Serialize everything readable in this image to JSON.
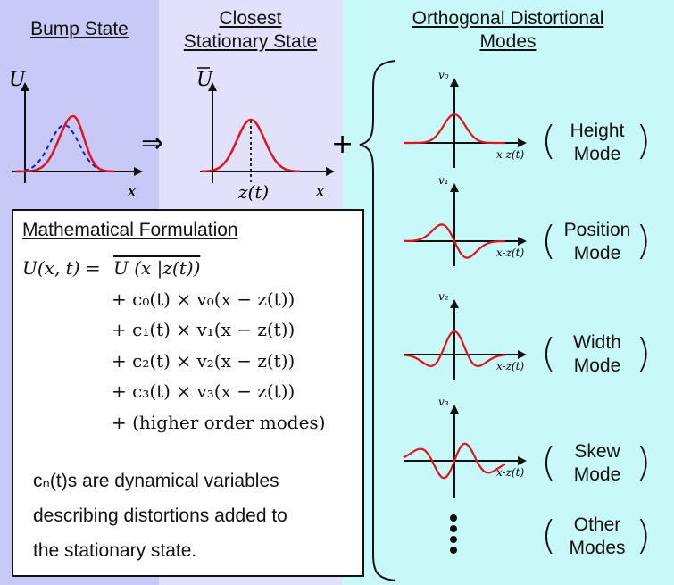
{
  "headers": {
    "bump": "Bump State",
    "closest_line1": "Closest",
    "closest_line2": "Stationary State",
    "modes_line1": "Orthogonal Distortional",
    "modes_line2": "Modes"
  },
  "bump_plot": {
    "y_label": "U",
    "x_label": "x"
  },
  "implies_symbol": "⇒",
  "closest_plot": {
    "y_label": "U",
    "x_label": "x",
    "peak_label": "z(t)"
  },
  "plus_symbol": "+",
  "colors": {
    "curve": "#e0141e",
    "dashed": "#1a1acc",
    "axis": "#111111"
  },
  "math_box": {
    "title": "Mathematical Formulation",
    "eq1_lhs": "U(x, t) =",
    "eq1_rhs": "U (x |z(t))",
    "eq_lines": [
      "+ c₀(t) × v₀(x − z(t))",
      "+ c₁(t) × v₁(x − z(t))",
      "+ c₂(t) × v₂(x − z(t))",
      "+ c₃(t) × v₃(x − z(t))",
      "+ (higher order modes)"
    ],
    "note_lines": [
      "cₙ(t)s are dynamical variables",
      "describing distortions added to",
      "the stationary state."
    ]
  },
  "modes": [
    {
      "axis_label": "v₀",
      "x_label": "x-z(t)",
      "line1": "Height",
      "line2": "Mode"
    },
    {
      "axis_label": "v₁",
      "x_label": "x-z(t)",
      "line1": "Position",
      "line2": "Mode"
    },
    {
      "axis_label": "v₂",
      "x_label": "x-z(t)",
      "line1": "Width",
      "line2": "Mode"
    },
    {
      "axis_label": "v₃",
      "x_label": "x-z(t)",
      "line1": "Skew",
      "line2": "Mode"
    }
  ],
  "other_modes": {
    "line1": "Other",
    "line2": "Modes"
  }
}
